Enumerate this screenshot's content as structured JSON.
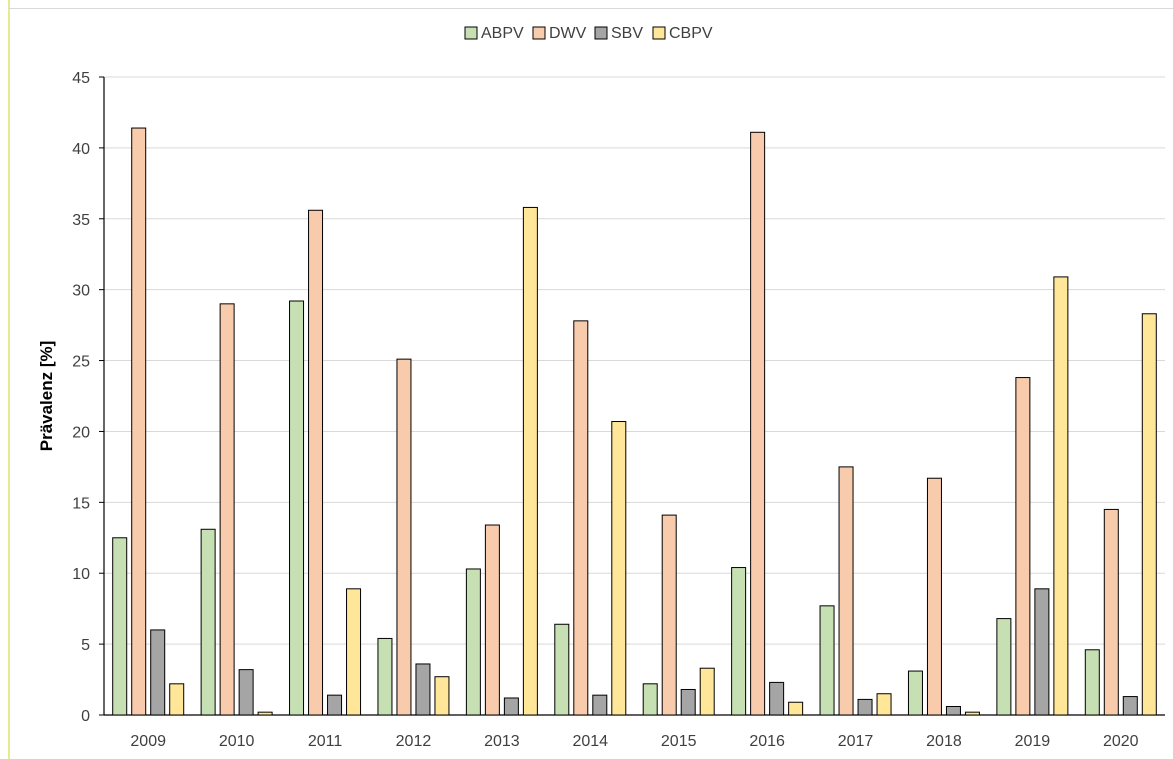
{
  "chart_data": {
    "type": "bar",
    "title": "",
    "xlabel": "",
    "ylabel": "Prävalenz [%]",
    "ylim": [
      0,
      45
    ],
    "yticks": [
      0,
      5,
      10,
      15,
      20,
      25,
      30,
      35,
      40,
      45
    ],
    "grid": true,
    "legend_position": "top-center",
    "categories": [
      "2009",
      "2010",
      "2011",
      "2012",
      "2013",
      "2014",
      "2015",
      "2016",
      "2017",
      "2018",
      "2019",
      "2020"
    ],
    "series": [
      {
        "name": "ABPV",
        "color": "#c6e0b4",
        "values": [
          12.5,
          13.1,
          29.2,
          5.4,
          10.3,
          6.4,
          2.2,
          10.4,
          7.7,
          3.1,
          6.8,
          4.6
        ]
      },
      {
        "name": "DWV",
        "color": "#f8cbad",
        "values": [
          41.4,
          29.0,
          35.6,
          25.1,
          13.4,
          27.8,
          14.1,
          41.1,
          17.5,
          16.7,
          23.8,
          14.5
        ]
      },
      {
        "name": "SBV",
        "color": "#a5a5a5",
        "values": [
          6.0,
          3.2,
          1.4,
          3.6,
          1.2,
          1.4,
          1.8,
          2.3,
          1.1,
          0.6,
          8.9,
          1.3
        ]
      },
      {
        "name": "CBPV",
        "color": "#ffe699",
        "values": [
          2.2,
          0.2,
          8.9,
          2.7,
          35.8,
          20.7,
          3.3,
          0.9,
          1.5,
          0.2,
          30.9,
          28.3
        ]
      }
    ]
  }
}
